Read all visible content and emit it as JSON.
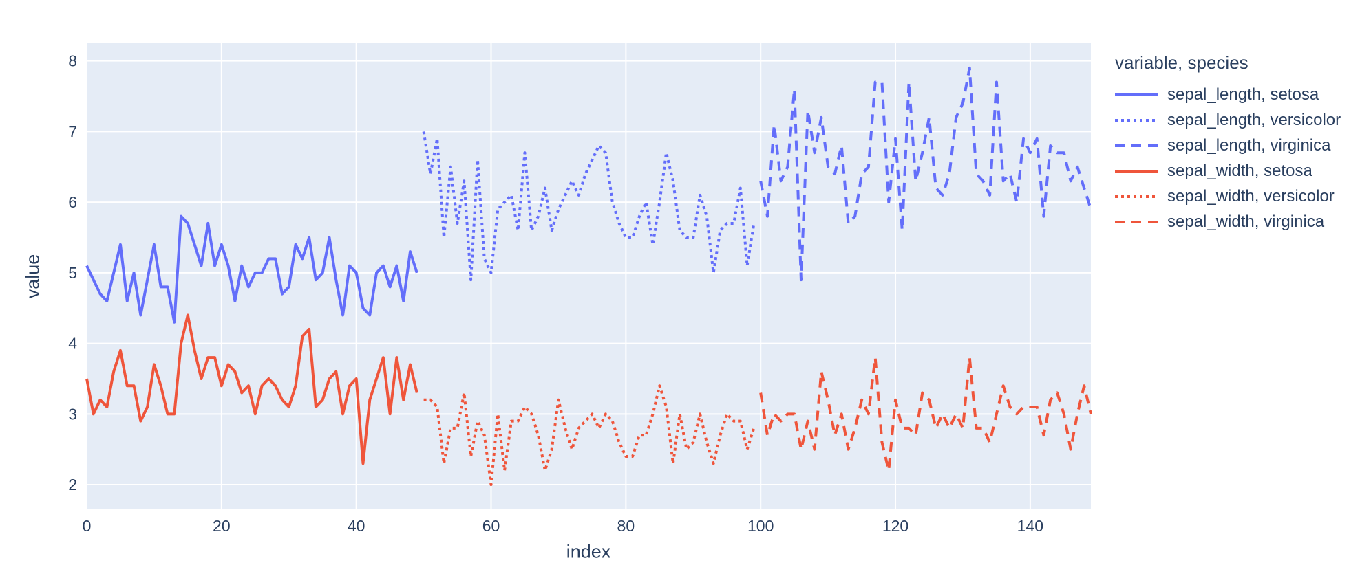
{
  "figure": {
    "background": "#ffffff",
    "plot_background": "#E5ECF6",
    "grid_color": "#ffffff",
    "text_color": "#2a3f5f",
    "accent_blue": "#636EFA",
    "accent_red": "#EF553B"
  },
  "chart_data": {
    "type": "line",
    "title": "",
    "xlabel": "index",
    "ylabel": "value",
    "xlim": [
      0,
      149
    ],
    "ylim": [
      1.65,
      8.25
    ],
    "xticks": [
      0,
      20,
      40,
      60,
      80,
      100,
      120,
      140
    ],
    "yticks": [
      2,
      3,
      4,
      5,
      6,
      7,
      8
    ],
    "grid": true,
    "legend_title": "variable, species",
    "legend_position": "right",
    "series": [
      {
        "name": "sepal_length, setosa",
        "color": "#636EFA",
        "dash": "solid",
        "x_start": 0,
        "values": [
          5.1,
          4.9,
          4.7,
          4.6,
          5.0,
          5.4,
          4.6,
          5.0,
          4.4,
          4.9,
          5.4,
          4.8,
          4.8,
          4.3,
          5.8,
          5.7,
          5.4,
          5.1,
          5.7,
          5.1,
          5.4,
          5.1,
          4.6,
          5.1,
          4.8,
          5.0,
          5.0,
          5.2,
          5.2,
          4.7,
          4.8,
          5.4,
          5.2,
          5.5,
          4.9,
          5.0,
          5.5,
          4.9,
          4.4,
          5.1,
          5.0,
          4.5,
          4.4,
          5.0,
          5.1,
          4.8,
          5.1,
          4.6,
          5.3,
          5.0
        ]
      },
      {
        "name": "sepal_length, versicolor",
        "color": "#636EFA",
        "dash": "dot",
        "x_start": 50,
        "values": [
          7.0,
          6.4,
          6.9,
          5.5,
          6.5,
          5.7,
          6.3,
          4.9,
          6.6,
          5.2,
          5.0,
          5.9,
          6.0,
          6.1,
          5.6,
          6.7,
          5.6,
          5.8,
          6.2,
          5.6,
          5.9,
          6.1,
          6.3,
          6.1,
          6.4,
          6.6,
          6.8,
          6.7,
          6.0,
          5.7,
          5.5,
          5.5,
          5.8,
          6.0,
          5.4,
          6.0,
          6.7,
          6.3,
          5.6,
          5.5,
          5.5,
          6.1,
          5.8,
          5.0,
          5.6,
          5.7,
          5.7,
          6.2,
          5.1,
          5.7
        ]
      },
      {
        "name": "sepal_length, virginica",
        "color": "#636EFA",
        "dash": "dash",
        "x_start": 100,
        "values": [
          6.3,
          5.8,
          7.1,
          6.3,
          6.5,
          7.6,
          4.9,
          7.3,
          6.7,
          7.2,
          6.5,
          6.4,
          6.8,
          5.7,
          5.8,
          6.4,
          6.5,
          7.7,
          7.7,
          6.0,
          6.9,
          5.6,
          7.7,
          6.3,
          6.7,
          7.2,
          6.2,
          6.1,
          6.4,
          7.2,
          7.4,
          7.9,
          6.4,
          6.3,
          6.1,
          7.7,
          6.3,
          6.4,
          6.0,
          6.9,
          6.7,
          6.9,
          5.8,
          6.8,
          6.7,
          6.7,
          6.3,
          6.5,
          6.2,
          5.9
        ]
      },
      {
        "name": "sepal_width, setosa",
        "color": "#EF553B",
        "dash": "solid",
        "x_start": 0,
        "values": [
          3.5,
          3.0,
          3.2,
          3.1,
          3.6,
          3.9,
          3.4,
          3.4,
          2.9,
          3.1,
          3.7,
          3.4,
          3.0,
          3.0,
          4.0,
          4.4,
          3.9,
          3.5,
          3.8,
          3.8,
          3.4,
          3.7,
          3.6,
          3.3,
          3.4,
          3.0,
          3.4,
          3.5,
          3.4,
          3.2,
          3.1,
          3.4,
          4.1,
          4.2,
          3.1,
          3.2,
          3.5,
          3.6,
          3.0,
          3.4,
          3.5,
          2.3,
          3.2,
          3.5,
          3.8,
          3.0,
          3.8,
          3.2,
          3.7,
          3.3
        ]
      },
      {
        "name": "sepal_width, versicolor",
        "color": "#EF553B",
        "dash": "dot",
        "x_start": 50,
        "values": [
          3.2,
          3.2,
          3.1,
          2.3,
          2.8,
          2.8,
          3.3,
          2.4,
          2.9,
          2.7,
          2.0,
          3.0,
          2.2,
          2.9,
          2.9,
          3.1,
          3.0,
          2.7,
          2.2,
          2.5,
          3.2,
          2.8,
          2.5,
          2.8,
          2.9,
          3.0,
          2.8,
          3.0,
          2.9,
          2.6,
          2.4,
          2.4,
          2.7,
          2.7,
          3.0,
          3.4,
          3.1,
          2.3,
          3.0,
          2.5,
          2.6,
          3.0,
          2.6,
          2.3,
          2.7,
          3.0,
          2.9,
          2.9,
          2.5,
          2.8
        ]
      },
      {
        "name": "sepal_width, virginica",
        "color": "#EF553B",
        "dash": "dash",
        "x_start": 100,
        "values": [
          3.3,
          2.7,
          3.0,
          2.9,
          3.0,
          3.0,
          2.5,
          2.9,
          2.5,
          3.6,
          3.2,
          2.7,
          3.0,
          2.5,
          2.8,
          3.2,
          3.0,
          3.8,
          2.6,
          2.2,
          3.2,
          2.8,
          2.8,
          2.7,
          3.3,
          3.2,
          2.8,
          3.0,
          2.8,
          3.0,
          2.8,
          3.8,
          2.8,
          2.8,
          2.6,
          3.0,
          3.4,
          3.1,
          3.0,
          3.1,
          3.1,
          3.1,
          2.7,
          3.2,
          3.3,
          3.0,
          2.5,
          3.0,
          3.4,
          3.0
        ]
      }
    ]
  }
}
